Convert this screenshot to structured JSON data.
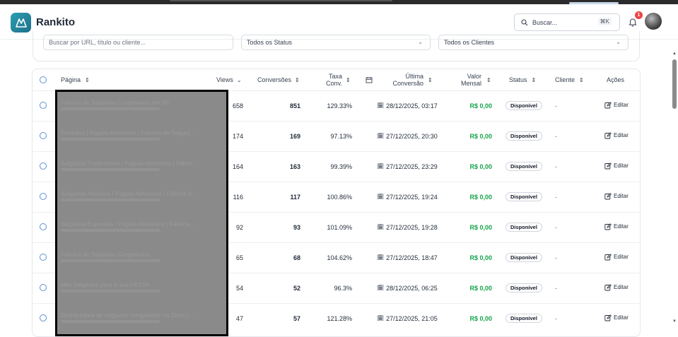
{
  "app": {
    "name": "Rankito"
  },
  "header": {
    "search_label": "Buscar...",
    "shortcut": "⌘K",
    "notifications_count": "1"
  },
  "filters": {
    "search_placeholder": "Buscar por URL, título ou cliente...",
    "status_select": "Todos os Status",
    "client_select": "Todos os Clientes"
  },
  "table": {
    "headers": {
      "page": "Página",
      "views": "Views",
      "conversions": "Conversões",
      "rate_line1": "Taxa",
      "rate_line2": "Conv.",
      "last_line1": "Última",
      "last_line2": "Conversão",
      "value_line1": "Valor",
      "value_line2": "Mensal",
      "status": "Status",
      "client": "Cliente",
      "actions": "Ações"
    },
    "rows": [
      {
        "title": "Fábrica de Salgados Congelados em SP",
        "sub": "",
        "views": "658",
        "conversions": "851",
        "rate": "129.33%",
        "last": "28/12/2025, 03:17",
        "value": "R$ 0,00",
        "status": "Disponível",
        "client": "-",
        "action": "Editar"
      },
      {
        "title": "Produtos | Pagula Alimentos | Fábrica de Salgad...",
        "sub": "",
        "views": "174",
        "conversions": "169",
        "rate": "97.13%",
        "last": "27/12/2025, 20:30",
        "value": "R$ 0,00",
        "status": "Disponível",
        "client": "-",
        "action": "Editar"
      },
      {
        "title": "Salgados Tradicionais | Pagula Alimentos | Fábric...",
        "sub": "",
        "views": "164",
        "conversions": "163",
        "rate": "99.39%",
        "last": "27/12/2025, 23:29",
        "value": "R$ 0,00",
        "status": "Disponível",
        "client": "-",
        "action": "Editar"
      },
      {
        "title": "Salgados Assados | Pagula Alimentos | Fábrica d...",
        "sub": "",
        "views": "116",
        "conversions": "117",
        "rate": "100.86%",
        "last": "27/12/2025, 19:24",
        "value": "R$ 0,00",
        "status": "Disponível",
        "client": "-",
        "action": "Editar"
      },
      {
        "title": "Salgados Especiais | Pagula Alimentos | Fábrica...",
        "sub": "",
        "views": "92",
        "conversions": "93",
        "rate": "101.09%",
        "last": "27/12/2025, 19:28",
        "value": "R$ 0,00",
        "status": "Disponível",
        "client": "-",
        "action": "Editar"
      },
      {
        "title": "Fábrica de Salgados Congelados",
        "sub": "",
        "views": "65",
        "conversions": "68",
        "rate": "104.62%",
        "last": "27/12/2025, 18:47",
        "value": "R$ 0,00",
        "status": "Disponível",
        "client": "-",
        "action": "Editar"
      },
      {
        "title": "Mini Salgados para a sua FESTA",
        "sub": "",
        "views": "54",
        "conversions": "52",
        "rate": "96.3%",
        "last": "28/12/2025, 06:25",
        "value": "R$ 0,00",
        "status": "Disponível",
        "client": "-",
        "action": "Editar"
      },
      {
        "title": "Distribuidora de salgados congelados na Zona L...",
        "sub": "",
        "views": "47",
        "conversions": "57",
        "rate": "121.28%",
        "last": "27/12/2025, 21:05",
        "value": "R$ 0,00",
        "status": "Disponível",
        "client": "-",
        "action": "Editar"
      }
    ]
  },
  "colors": {
    "brand": "#1e6f8c",
    "accent_green": "#16a34a",
    "badge_red": "#ef4444"
  }
}
